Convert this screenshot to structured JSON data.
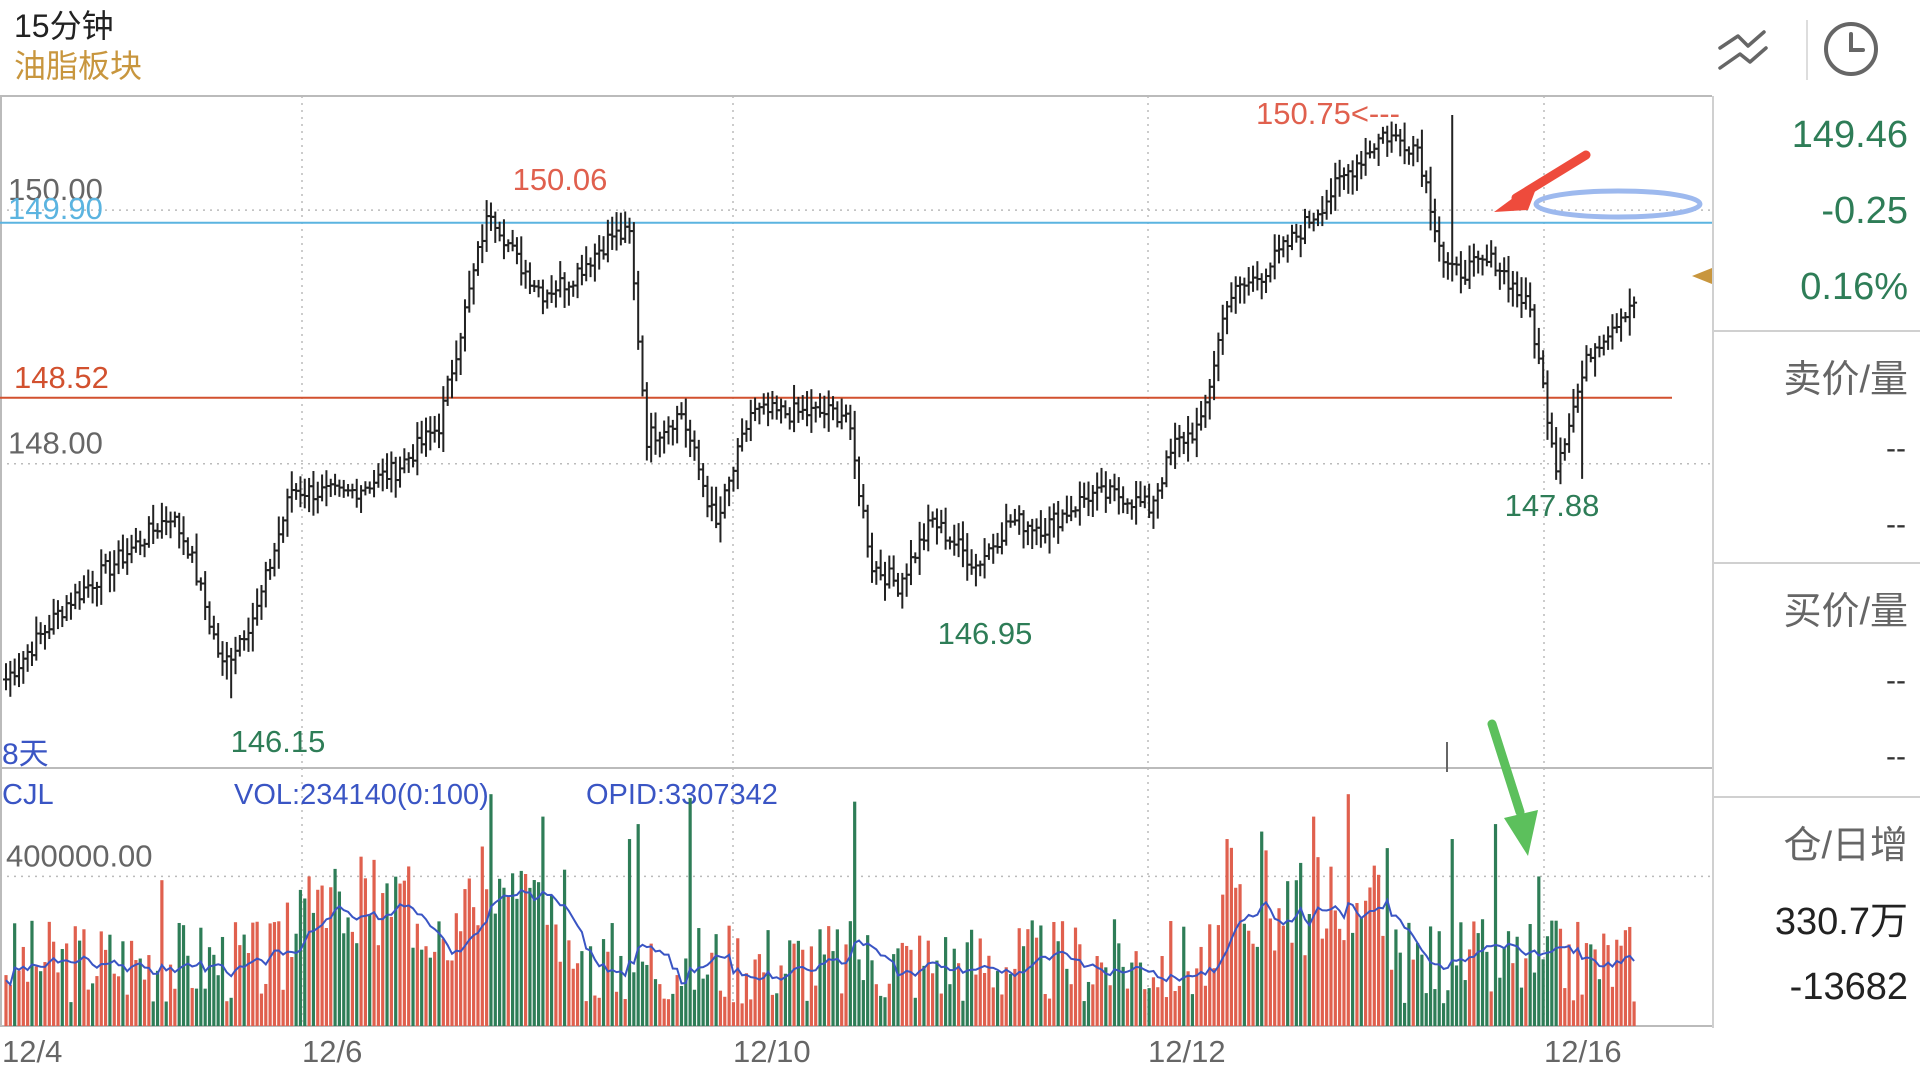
{
  "header": {
    "title": "15分钟",
    "subtitle": "油脂板块"
  },
  "side_panel": {
    "price": "149.46",
    "change": "-0.25",
    "change_pct": "0.16%",
    "sell_label": "卖价/量",
    "sell_price": "--",
    "sell_vol": "--",
    "buy_label": "买价/量",
    "buy_price": "--",
    "buy_vol": "--",
    "oi_label": "仓/日增",
    "oi_value": "330.7万",
    "oi_change": "-13682"
  },
  "colors": {
    "up": "#e0604e",
    "down": "#2e7d57",
    "bar": "#222222",
    "ma": "#3a55c4",
    "hline_blue": "#5bb4e0",
    "hline_red": "#d2512f",
    "accent": "#c8963e"
  },
  "icons": [
    "draw-tool-icon",
    "clock-icon"
  ],
  "chart_data": {
    "type": "bar",
    "ylim": [
      145.6,
      150.9
    ],
    "price_ticks": [
      "150.00",
      "148.00"
    ],
    "price_tick_values": [
      150.0,
      148.0
    ],
    "blue_line_label": "149.90",
    "blue_line_value": 149.9,
    "red_line_label": "148.52",
    "red_line_value": 148.52,
    "period_label": "8天",
    "x_labels": [
      "12/4",
      "12/6",
      "12/10",
      "12/12",
      "12/16"
    ],
    "annotations": [
      {
        "text": "150.06",
        "kind": "high"
      },
      {
        "text": "146.15",
        "kind": "low"
      },
      {
        "text": "146.95",
        "kind": "low"
      },
      {
        "text": "150.75<---",
        "kind": "high"
      },
      {
        "text": "147.88",
        "kind": "low"
      }
    ],
    "volume": {
      "labels": [
        "CJL",
        "VOL:234140(0:100)",
        "OPID:3307342"
      ],
      "tick_label": "400000.00",
      "tick_value": 400000,
      "ylim": [
        0,
        690000
      ]
    },
    "anchors": [
      [
        0,
        146.3
      ],
      [
        14,
        146.9
      ],
      [
        28,
        147.3
      ],
      [
        38,
        147.6
      ],
      [
        42,
        147.35
      ],
      [
        50,
        146.4
      ],
      [
        58,
        146.85
      ],
      [
        66,
        147.8
      ],
      [
        78,
        147.75
      ],
      [
        90,
        147.95
      ],
      [
        100,
        148.3
      ],
      [
        106,
        149.2
      ],
      [
        110,
        149.8
      ],
      [
        112,
        150.0
      ],
      [
        118,
        149.6
      ],
      [
        124,
        149.35
      ],
      [
        130,
        149.45
      ],
      [
        140,
        149.8
      ],
      [
        144,
        149.8
      ],
      [
        148,
        148.2
      ],
      [
        156,
        148.4
      ],
      [
        164,
        147.5
      ],
      [
        172,
        148.4
      ],
      [
        184,
        148.4
      ],
      [
        194,
        148.4
      ],
      [
        200,
        147.2
      ],
      [
        206,
        147.05
      ],
      [
        214,
        147.55
      ],
      [
        224,
        147.2
      ],
      [
        232,
        147.55
      ],
      [
        240,
        147.5
      ],
      [
        250,
        147.75
      ],
      [
        258,
        147.75
      ],
      [
        264,
        147.65
      ],
      [
        270,
        148.15
      ],
      [
        276,
        148.3
      ],
      [
        282,
        149.3
      ],
      [
        290,
        149.5
      ],
      [
        298,
        149.8
      ],
      [
        310,
        150.3
      ],
      [
        318,
        150.6
      ],
      [
        326,
        150.5
      ],
      [
        332,
        149.6
      ],
      [
        334,
        149.5
      ],
      [
        344,
        149.6
      ],
      [
        352,
        149.2
      ],
      [
        358,
        148.0
      ],
      [
        366,
        148.9
      ],
      [
        376,
        149.3
      ]
    ]
  }
}
